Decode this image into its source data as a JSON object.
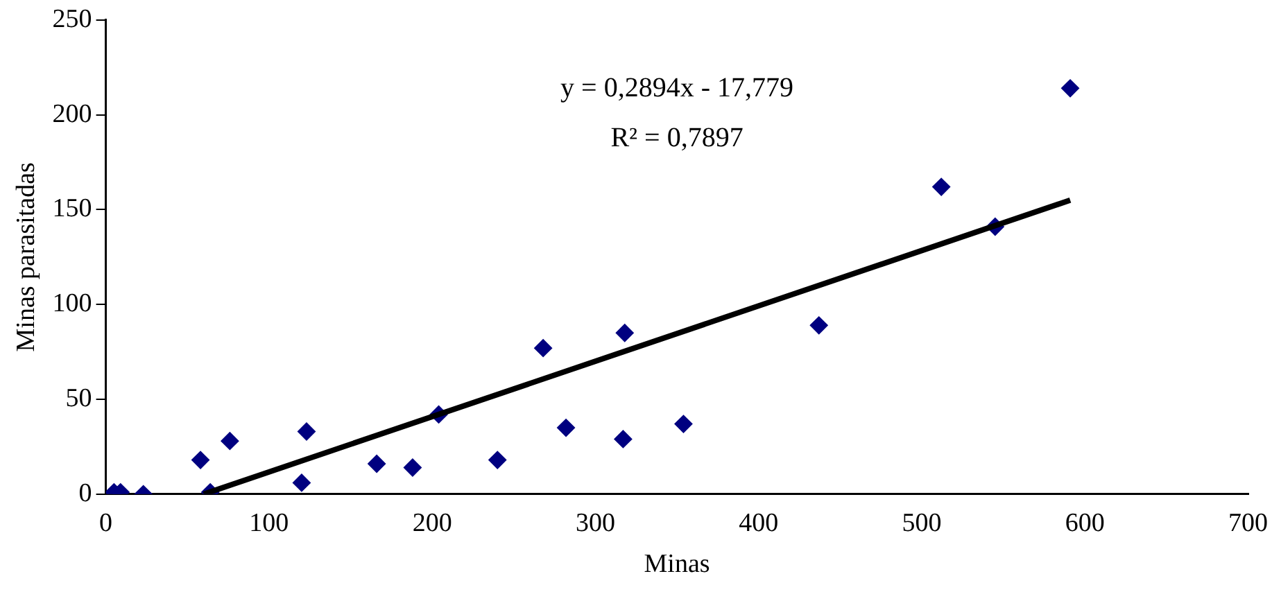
{
  "chart_data": {
    "type": "scatter",
    "xlabel": "Minas",
    "ylabel": "Minas parasitadas",
    "xlim": [
      0,
      700
    ],
    "xticks": [
      0,
      100,
      200,
      300,
      400,
      500,
      600,
      700
    ],
    "ylim": [
      0,
      250
    ],
    "yticks": [
      0,
      50,
      100,
      150,
      200,
      250
    ],
    "grid": false,
    "legend": false,
    "marker": "diamond",
    "series": [
      {
        "color": "#000080",
        "x": [
          5,
          9,
          23,
          58,
          76,
          64,
          120,
          123,
          166,
          188,
          204,
          240,
          268,
          282,
          317,
          318,
          354,
          437,
          512,
          545,
          591
        ],
        "values": [
          1,
          1,
          0,
          18,
          28,
          1,
          6,
          33,
          16,
          14,
          42,
          18,
          77,
          35,
          29,
          85,
          37,
          89,
          162,
          141,
          214
        ]
      },
      {
        "type": "line",
        "color": "#000000",
        "marker": "none",
        "line_style": "solid",
        "x": [
          60,
          591
        ],
        "values": [
          0,
          155
        ]
      }
    ],
    "annotations": [
      "y = 0,2894x - 17,779",
      "R² = 0,7897"
    ]
  }
}
